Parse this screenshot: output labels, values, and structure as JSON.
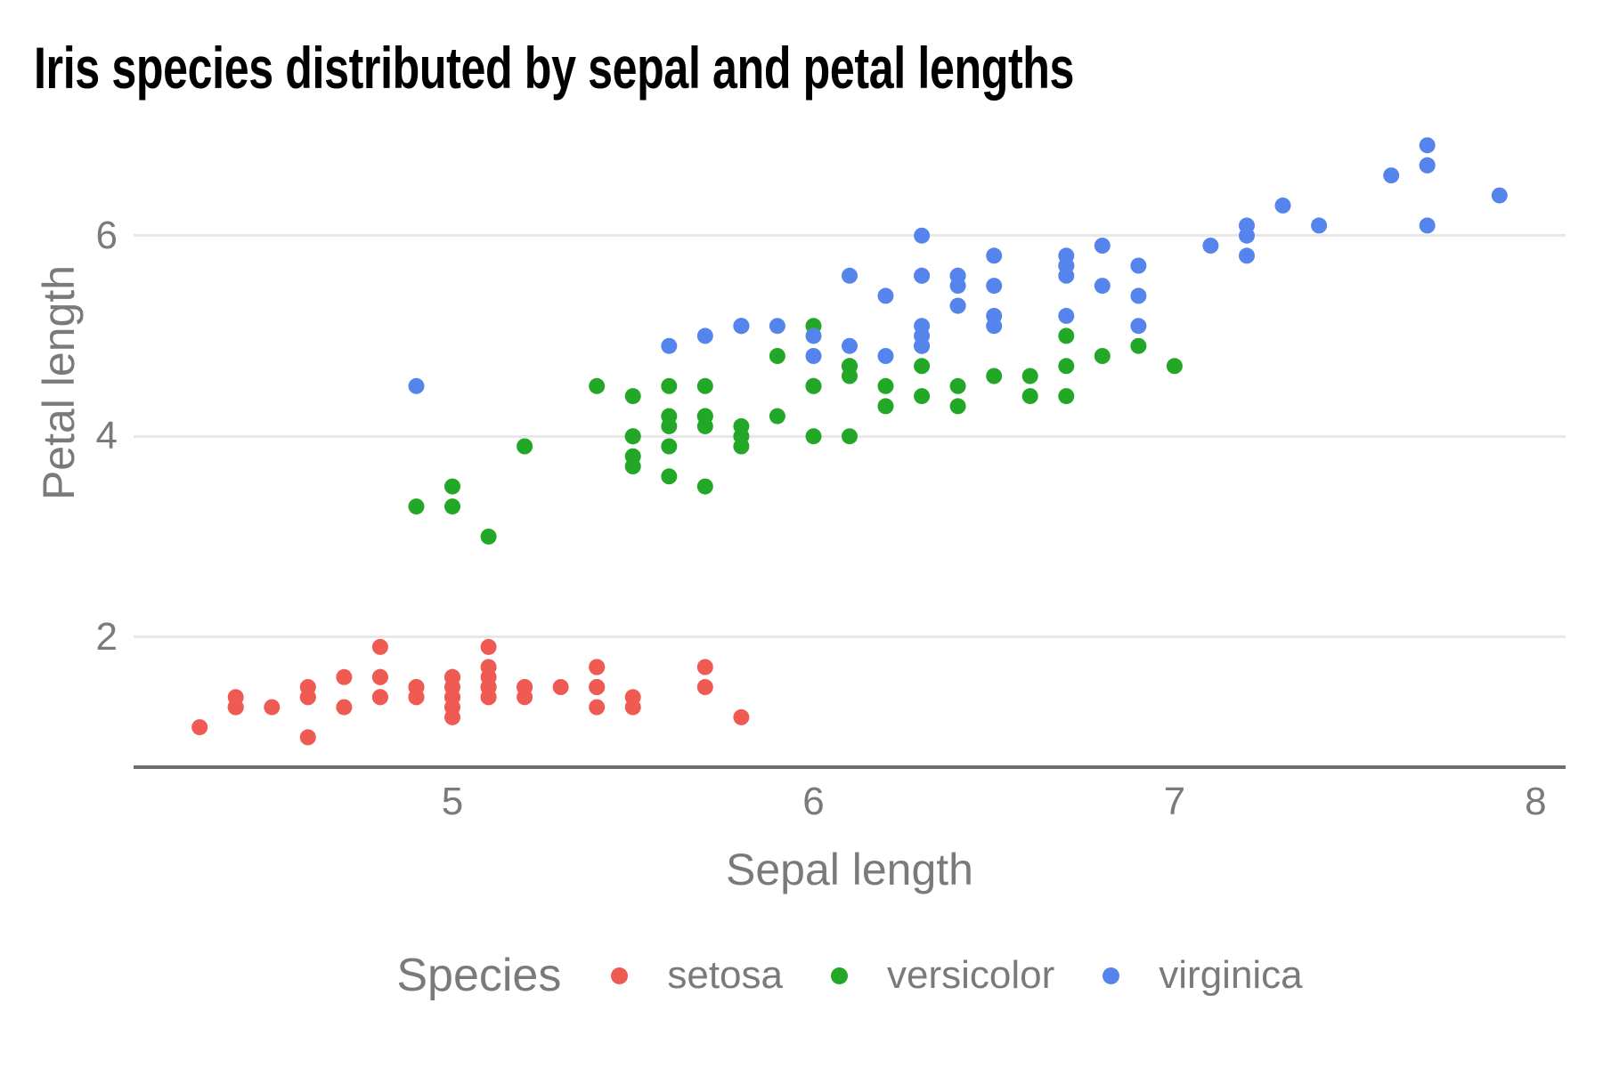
{
  "title": "Iris species distributed by sepal and petal lengths",
  "axes": {
    "x_title": "Sepal length",
    "y_title": "Petal length",
    "x_tick_labels": [
      "5",
      "6",
      "7",
      "8"
    ],
    "y_tick_labels": [
      "2",
      "4",
      "6"
    ]
  },
  "legend": {
    "title": "Species",
    "items": [
      {
        "label": "setosa",
        "color": "#EF5A52"
      },
      {
        "label": "versicolor",
        "color": "#22A727"
      },
      {
        "label": "virginica",
        "color": "#5585EC"
      }
    ]
  },
  "style_colors": {
    "title_text": "#000000",
    "axis_text": "#7A7A7A",
    "gridline": "#E8E8E8",
    "axis_line": "#6E6E6E",
    "background": "#FFFFFF"
  },
  "chart_data": {
    "type": "scatter",
    "title": "Iris species distributed by sepal and petal lengths",
    "xlabel": "Sepal length",
    "ylabel": "Petal length",
    "xlim": [
      4.117,
      8.083
    ],
    "ylim": [
      0.702,
      7.186
    ],
    "x_ticks": [
      5,
      6,
      7,
      8
    ],
    "y_ticks": [
      2,
      4,
      6
    ],
    "grid": "horizontal major gridlines only",
    "legend_position": "bottom",
    "legend_title": "Species",
    "point_radius_px": 9,
    "series": [
      {
        "name": "setosa",
        "color": "#EF5A52",
        "points": [
          [
            5.1,
            1.4
          ],
          [
            4.9,
            1.4
          ],
          [
            4.7,
            1.3
          ],
          [
            4.6,
            1.5
          ],
          [
            5.0,
            1.4
          ],
          [
            5.4,
            1.7
          ],
          [
            4.6,
            1.4
          ],
          [
            5.0,
            1.5
          ],
          [
            4.4,
            1.4
          ],
          [
            4.9,
            1.5
          ],
          [
            5.4,
            1.5
          ],
          [
            4.8,
            1.6
          ],
          [
            4.8,
            1.4
          ],
          [
            4.3,
            1.1
          ],
          [
            5.8,
            1.2
          ],
          [
            5.7,
            1.5
          ],
          [
            5.4,
            1.3
          ],
          [
            5.1,
            1.4
          ],
          [
            5.7,
            1.7
          ],
          [
            5.1,
            1.5
          ],
          [
            5.4,
            1.7
          ],
          [
            5.1,
            1.5
          ],
          [
            4.6,
            1.0
          ],
          [
            5.1,
            1.7
          ],
          [
            4.8,
            1.9
          ],
          [
            5.0,
            1.6
          ],
          [
            5.0,
            1.6
          ],
          [
            5.2,
            1.5
          ],
          [
            5.2,
            1.4
          ],
          [
            4.7,
            1.6
          ],
          [
            4.8,
            1.6
          ],
          [
            5.4,
            1.5
          ],
          [
            5.2,
            1.5
          ],
          [
            5.5,
            1.4
          ],
          [
            4.9,
            1.5
          ],
          [
            5.0,
            1.2
          ],
          [
            5.5,
            1.3
          ],
          [
            4.9,
            1.4
          ],
          [
            4.4,
            1.3
          ],
          [
            5.1,
            1.5
          ],
          [
            5.0,
            1.3
          ],
          [
            4.5,
            1.3
          ],
          [
            4.4,
            1.3
          ],
          [
            5.0,
            1.6
          ],
          [
            5.1,
            1.9
          ],
          [
            4.8,
            1.4
          ],
          [
            5.1,
            1.6
          ],
          [
            4.6,
            1.4
          ],
          [
            5.3,
            1.5
          ],
          [
            5.0,
            1.4
          ]
        ]
      },
      {
        "name": "versicolor",
        "color": "#22A727",
        "points": [
          [
            7.0,
            4.7
          ],
          [
            6.4,
            4.5
          ],
          [
            6.9,
            4.9
          ],
          [
            5.5,
            4.0
          ],
          [
            6.5,
            4.6
          ],
          [
            5.7,
            4.5
          ],
          [
            6.3,
            4.7
          ],
          [
            4.9,
            3.3
          ],
          [
            6.6,
            4.6
          ],
          [
            5.2,
            3.9
          ],
          [
            5.0,
            3.5
          ],
          [
            5.9,
            4.2
          ],
          [
            6.0,
            4.0
          ],
          [
            6.1,
            4.7
          ],
          [
            5.6,
            3.6
          ],
          [
            6.7,
            4.4
          ],
          [
            5.6,
            4.5
          ],
          [
            5.8,
            4.1
          ],
          [
            6.2,
            4.5
          ],
          [
            5.6,
            3.9
          ],
          [
            5.9,
            4.8
          ],
          [
            6.1,
            4.0
          ],
          [
            6.3,
            4.9
          ],
          [
            6.1,
            4.7
          ],
          [
            6.4,
            4.3
          ],
          [
            6.6,
            4.4
          ],
          [
            6.8,
            4.8
          ],
          [
            6.7,
            5.0
          ],
          [
            6.0,
            4.5
          ],
          [
            5.7,
            3.5
          ],
          [
            5.5,
            3.8
          ],
          [
            5.5,
            3.7
          ],
          [
            5.8,
            3.9
          ],
          [
            6.0,
            5.1
          ],
          [
            5.4,
            4.5
          ],
          [
            6.0,
            4.5
          ],
          [
            6.7,
            4.7
          ],
          [
            6.3,
            4.4
          ],
          [
            5.6,
            4.1
          ],
          [
            5.5,
            4.0
          ],
          [
            5.5,
            4.4
          ],
          [
            6.1,
            4.6
          ],
          [
            5.8,
            4.0
          ],
          [
            5.0,
            3.3
          ],
          [
            5.6,
            4.2
          ],
          [
            5.7,
            4.2
          ],
          [
            5.7,
            4.2
          ],
          [
            6.2,
            4.3
          ],
          [
            5.1,
            3.0
          ],
          [
            5.7,
            4.1
          ]
        ]
      },
      {
        "name": "virginica",
        "color": "#5585EC",
        "points": [
          [
            6.3,
            6.0
          ],
          [
            5.8,
            5.1
          ],
          [
            7.1,
            5.9
          ],
          [
            6.3,
            5.6
          ],
          [
            6.5,
            5.8
          ],
          [
            7.6,
            6.6
          ],
          [
            4.9,
            4.5
          ],
          [
            7.3,
            6.3
          ],
          [
            6.7,
            5.8
          ],
          [
            7.2,
            6.1
          ],
          [
            6.5,
            5.1
          ],
          [
            6.4,
            5.3
          ],
          [
            6.8,
            5.5
          ],
          [
            5.7,
            5.0
          ],
          [
            5.8,
            5.1
          ],
          [
            6.4,
            5.3
          ],
          [
            6.5,
            5.5
          ],
          [
            7.7,
            6.7
          ],
          [
            7.7,
            6.9
          ],
          [
            6.0,
            5.0
          ],
          [
            6.9,
            5.7
          ],
          [
            5.6,
            4.9
          ],
          [
            7.7,
            6.7
          ],
          [
            6.3,
            4.9
          ],
          [
            6.7,
            5.7
          ],
          [
            7.2,
            6.0
          ],
          [
            6.2,
            4.8
          ],
          [
            6.1,
            4.9
          ],
          [
            6.4,
            5.6
          ],
          [
            7.2,
            5.8
          ],
          [
            7.4,
            6.1
          ],
          [
            7.9,
            6.4
          ],
          [
            6.4,
            5.6
          ],
          [
            6.3,
            5.1
          ],
          [
            6.1,
            5.6
          ],
          [
            7.7,
            6.1
          ],
          [
            6.3,
            5.6
          ],
          [
            6.4,
            5.5
          ],
          [
            6.0,
            4.8
          ],
          [
            6.9,
            5.4
          ],
          [
            6.7,
            5.6
          ],
          [
            6.9,
            5.1
          ],
          [
            5.8,
            5.1
          ],
          [
            6.8,
            5.9
          ],
          [
            6.7,
            5.7
          ],
          [
            6.7,
            5.2
          ],
          [
            6.3,
            5.0
          ],
          [
            6.5,
            5.2
          ],
          [
            6.2,
            5.4
          ],
          [
            5.9,
            5.1
          ]
        ]
      }
    ]
  }
}
